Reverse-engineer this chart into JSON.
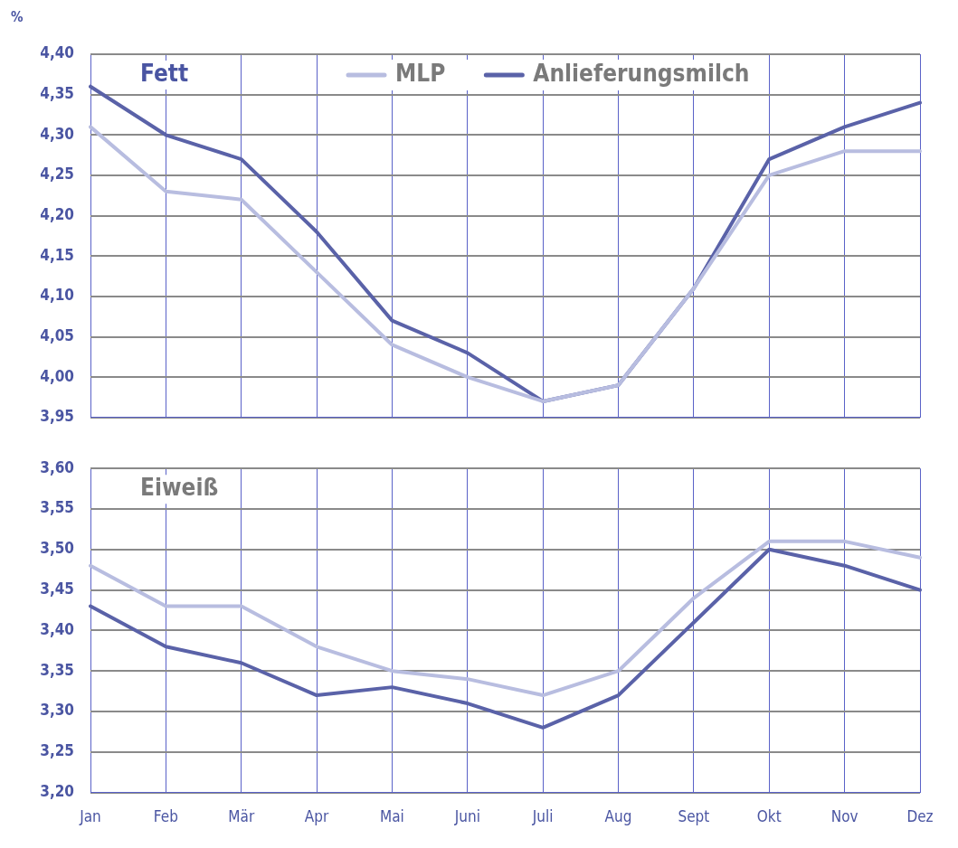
{
  "chart_data": [
    {
      "type": "line",
      "title": "Fett",
      "ylabel": "%",
      "categories": [
        null,
        null,
        null,
        null,
        null,
        null,
        null,
        null,
        null,
        null,
        null,
        null
      ],
      "series": [
        {
          "name": "MLP",
          "color": "#b8bde0",
          "values": [
            4.31,
            4.23,
            4.22,
            4.13,
            4.04,
            4.0,
            3.97,
            3.99,
            4.11,
            4.25,
            4.28,
            4.28
          ]
        },
        {
          "name": "Anlieferungsmilch",
          "color": "#5a62a8",
          "values": [
            4.36,
            4.3,
            4.27,
            4.18,
            4.07,
            4.03,
            3.97,
            3.99,
            4.11,
            4.27,
            4.31,
            4.34
          ]
        }
      ],
      "ylim": [
        3.95,
        4.4
      ],
      "yticks": [
        {
          "value": 3.95,
          "label": "3,95"
        },
        {
          "value": 4.0,
          "label": "4,00"
        },
        {
          "value": 4.05,
          "label": "4,05"
        },
        {
          "value": 4.1,
          "label": "4,10"
        },
        {
          "value": 4.15,
          "label": "4,15"
        },
        {
          "value": 4.2,
          "label": "4,20"
        },
        {
          "value": 4.25,
          "label": "4,25"
        },
        {
          "value": 4.3,
          "label": "4,30"
        },
        {
          "value": 4.35,
          "label": "4,35"
        },
        {
          "value": 4.4,
          "label": "4,40"
        }
      ],
      "grid": true,
      "legend": "top",
      "marker": "none",
      "line_style": "solid",
      "tick_labels": "y"
    },
    {
      "type": "line",
      "title": "Eiweiß",
      "categories": [
        "Jan",
        "Feb",
        "Mär",
        "Apr",
        "Mai",
        "Juni",
        "Juli",
        "Aug",
        "Sept",
        "Okt",
        "Nov",
        "Dez"
      ],
      "series": [
        {
          "color": "#b8bde0",
          "values": [
            3.48,
            3.43,
            3.43,
            3.38,
            3.35,
            3.34,
            3.32,
            3.35,
            3.44,
            3.51,
            3.51,
            3.49
          ]
        },
        {
          "color": "#5a62a8",
          "values": [
            3.43,
            3.38,
            3.36,
            3.32,
            3.33,
            3.31,
            3.28,
            3.32,
            3.41,
            3.5,
            3.48,
            3.45
          ]
        }
      ],
      "ylim": [
        3.2,
        3.6
      ],
      "yticks": [
        {
          "value": 3.2,
          "label": "3,20"
        },
        {
          "value": 3.25,
          "label": "3,25"
        },
        {
          "value": 3.3,
          "label": "3,30"
        },
        {
          "value": 3.35,
          "label": "3,35"
        },
        {
          "value": 3.4,
          "label": "3,40"
        },
        {
          "value": 3.45,
          "label": "3,45"
        },
        {
          "value": 3.5,
          "label": "3,50"
        },
        {
          "value": 3.55,
          "label": "3,55"
        },
        {
          "value": 3.6,
          "label": "3,60"
        }
      ],
      "grid": true,
      "legend": false,
      "marker": "none",
      "line_style": "solid"
    }
  ]
}
